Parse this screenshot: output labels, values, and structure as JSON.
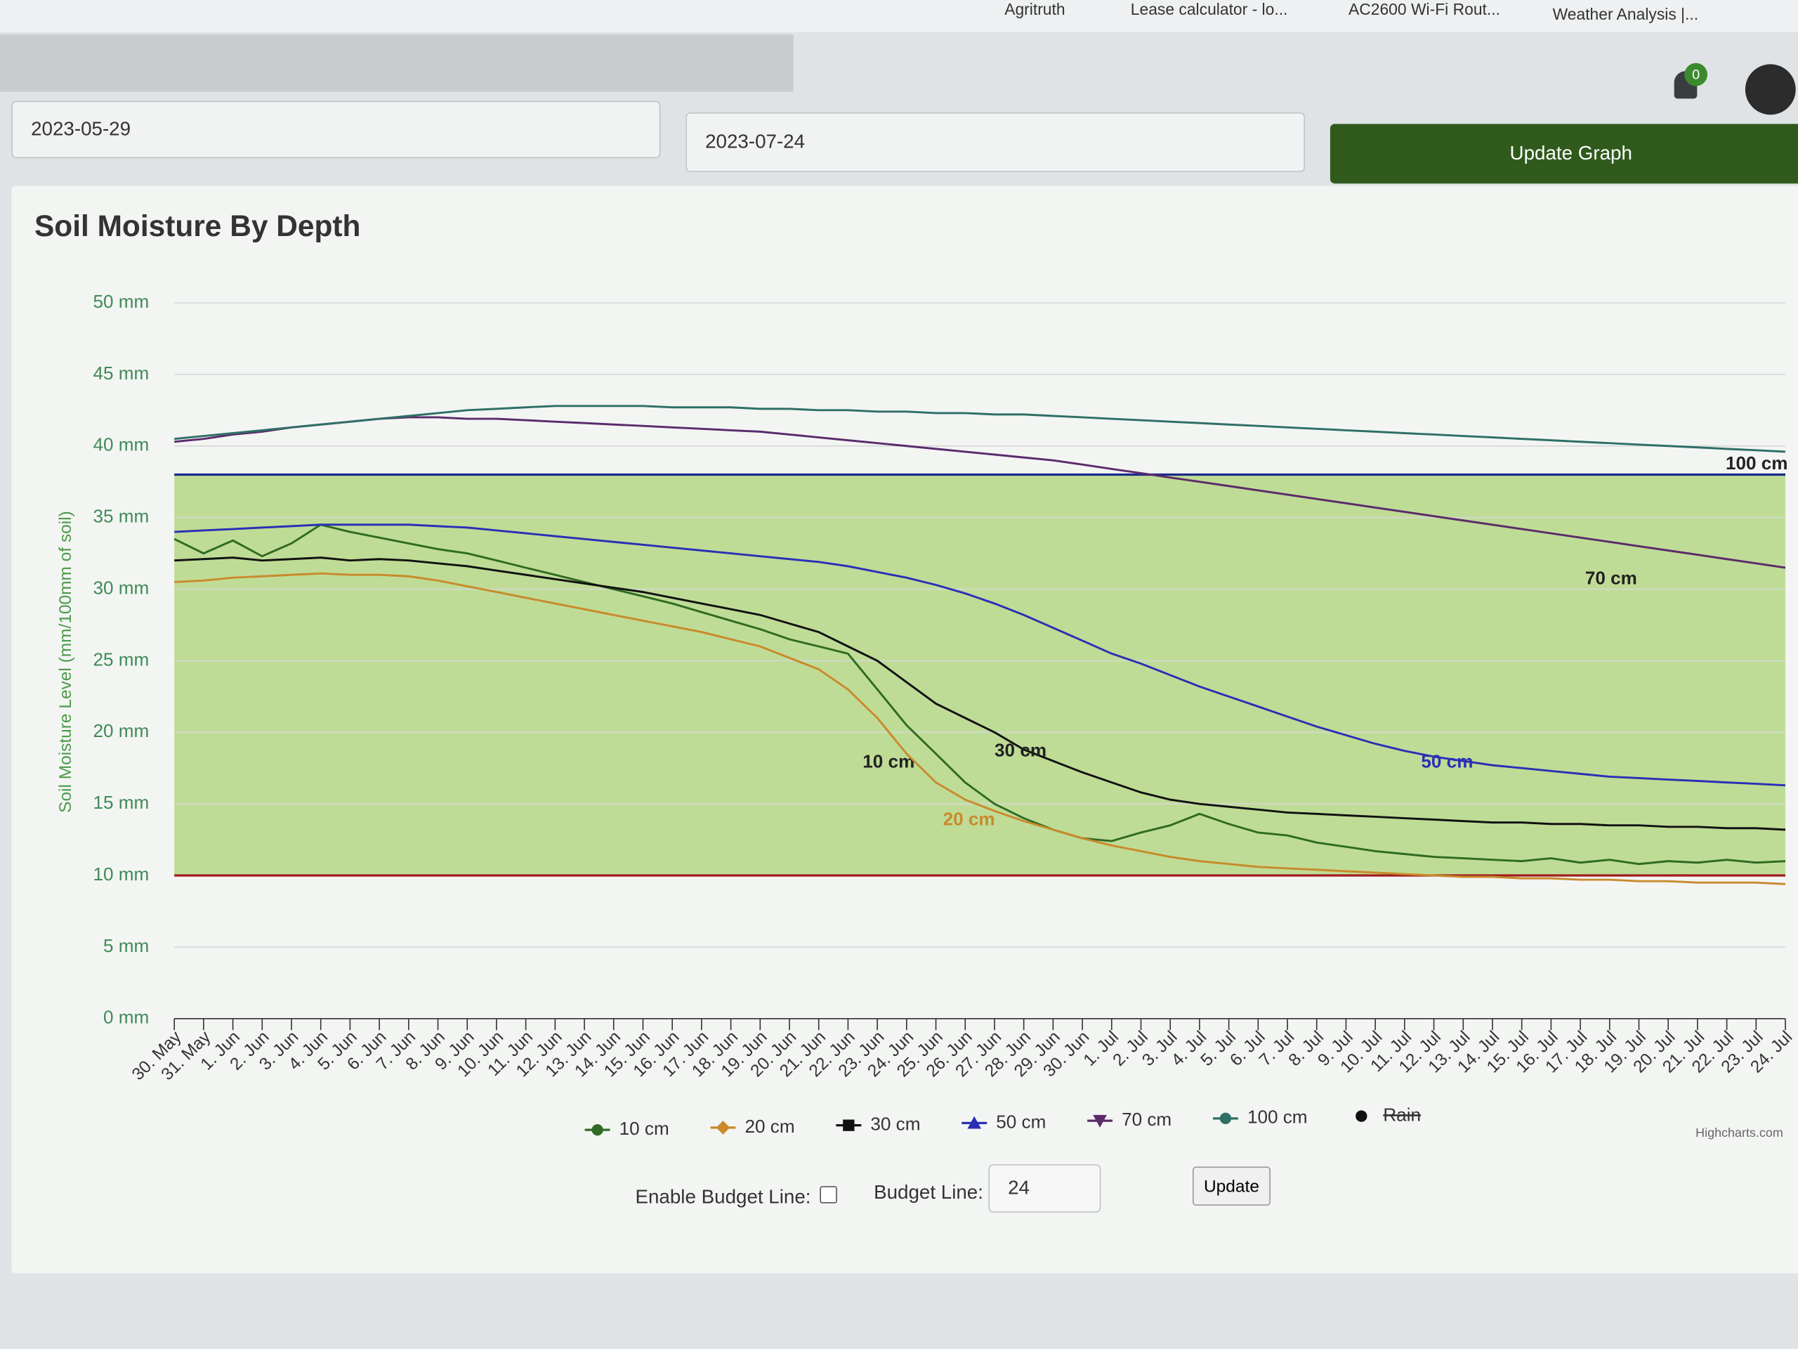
{
  "browser": {
    "bookmarks": [
      "Agritruth",
      "Lease calculator - lo...",
      "AC2600 Wi-Fi Rout...",
      "Weather Analysis |..."
    ]
  },
  "header": {
    "notifications": 0
  },
  "form": {
    "start_date": "2023-05-29",
    "end_date": "2023-07-24",
    "button": "Update Graph"
  },
  "chart_data": {
    "type": "line",
    "title": "Soil Moisture By Depth",
    "y_axis_label": "Soil Moisture Level (mm/100mm of soil)",
    "categories": [
      "30. May",
      "31. May",
      "1. Jun",
      "2. Jun",
      "3. Jun",
      "4. Jun",
      "5. Jun",
      "6. Jun",
      "7. Jun",
      "8. Jun",
      "9. Jun",
      "10. Jun",
      "11. Jun",
      "12. Jun",
      "13. Jun",
      "14. Jun",
      "15. Jun",
      "16. Jun",
      "17. Jun",
      "18. Jun",
      "19. Jun",
      "20. Jun",
      "21. Jun",
      "22. Jun",
      "23. Jun",
      "24. Jun",
      "25. Jun",
      "26. Jun",
      "27. Jun",
      "28. Jun",
      "29. Jun",
      "30. Jun",
      "1. Jul",
      "2. Jul",
      "3. Jul",
      "4. Jul",
      "5. Jul",
      "6. Jul",
      "7. Jul",
      "8. Jul",
      "9. Jul",
      "10. Jul",
      "11. Jul",
      "12. Jul",
      "13. Jul",
      "14. Jul",
      "15. Jul",
      "16. Jul",
      "17. Jul",
      "18. Jul",
      "19. Jul",
      "20. Jul",
      "21. Jul",
      "22. Jul",
      "23. Jul",
      "24. Jul"
    ],
    "ylim": [
      0,
      50
    ],
    "yticks": [
      {
        "value": 0,
        "label": "0 mm"
      },
      {
        "value": 5,
        "label": "5 mm"
      },
      {
        "value": 10,
        "label": "10 mm"
      },
      {
        "value": 15,
        "label": "15 mm"
      },
      {
        "value": 20,
        "label": "20 mm"
      },
      {
        "value": 25,
        "label": "25 mm"
      },
      {
        "value": 30,
        "label": "30 mm"
      },
      {
        "value": 35,
        "label": "35 mm"
      },
      {
        "value": 40,
        "label": "40 mm"
      },
      {
        "value": 45,
        "label": "45 mm"
      },
      {
        "value": 50,
        "label": "50 mm"
      }
    ],
    "grid": true,
    "plot_band": {
      "from": 10,
      "to": 38,
      "color": "#b9d98c"
    },
    "plot_lines": [
      {
        "value": 38,
        "color": "#1a2a8a"
      },
      {
        "value": 10,
        "color": "#a01c1c"
      }
    ],
    "series": [
      {
        "name": "10 cm",
        "color": "#2f6b22",
        "symbol": "circle",
        "values": [
          33.5,
          32.5,
          33.4,
          32.3,
          33.2,
          34.5,
          34.0,
          33.6,
          33.2,
          32.8,
          32.5,
          32.0,
          31.5,
          31.0,
          30.5,
          30.0,
          29.5,
          29.0,
          28.4,
          27.8,
          27.2,
          26.5,
          26.0,
          25.5,
          23.0,
          20.5,
          18.5,
          16.5,
          15.0,
          14.0,
          13.2,
          12.6,
          12.4,
          13.0,
          13.5,
          14.3,
          13.6,
          13.0,
          12.8,
          12.3,
          12.0,
          11.7,
          11.5,
          11.3,
          11.2,
          11.1,
          11.0,
          11.2,
          10.9,
          11.1,
          10.8,
          11.0,
          10.9,
          11.1,
          10.9,
          11.0
        ]
      },
      {
        "name": "20 cm",
        "color": "#c98a2c",
        "symbol": "diamond",
        "values": [
          30.5,
          30.6,
          30.8,
          30.9,
          31.0,
          31.1,
          31.0,
          31.0,
          30.9,
          30.6,
          30.2,
          29.8,
          29.4,
          29.0,
          28.6,
          28.2,
          27.8,
          27.4,
          27.0,
          26.5,
          26.0,
          25.2,
          24.4,
          23.0,
          21.0,
          18.5,
          16.5,
          15.3,
          14.5,
          13.8,
          13.2,
          12.6,
          12.1,
          11.7,
          11.3,
          11.0,
          10.8,
          10.6,
          10.5,
          10.4,
          10.3,
          10.2,
          10.1,
          10.0,
          9.9,
          9.9,
          9.8,
          9.8,
          9.7,
          9.7,
          9.6,
          9.6,
          9.5,
          9.5,
          9.5,
          9.4
        ]
      },
      {
        "name": "30 cm",
        "color": "#111111",
        "symbol": "square",
        "values": [
          32.0,
          32.1,
          32.2,
          32.0,
          32.1,
          32.2,
          32.0,
          32.1,
          32.0,
          31.8,
          31.6,
          31.3,
          31.0,
          30.7,
          30.4,
          30.1,
          29.8,
          29.4,
          29.0,
          28.6,
          28.2,
          27.6,
          27.0,
          26.0,
          25.0,
          23.5,
          22.0,
          21.0,
          20.0,
          18.8,
          18.0,
          17.2,
          16.5,
          15.8,
          15.3,
          15.0,
          14.8,
          14.6,
          14.4,
          14.3,
          14.2,
          14.1,
          14.0,
          13.9,
          13.8,
          13.7,
          13.7,
          13.6,
          13.6,
          13.5,
          13.5,
          13.4,
          13.4,
          13.3,
          13.3,
          13.2
        ]
      },
      {
        "name": "50 cm",
        "color": "#2a30b5",
        "symbol": "triangle",
        "values": [
          34.0,
          34.1,
          34.2,
          34.3,
          34.4,
          34.5,
          34.5,
          34.5,
          34.5,
          34.4,
          34.3,
          34.1,
          33.9,
          33.7,
          33.5,
          33.3,
          33.1,
          32.9,
          32.7,
          32.5,
          32.3,
          32.1,
          31.9,
          31.6,
          31.2,
          30.8,
          30.3,
          29.7,
          29.0,
          28.2,
          27.3,
          26.4,
          25.5,
          24.8,
          24.0,
          23.2,
          22.5,
          21.8,
          21.1,
          20.4,
          19.8,
          19.2,
          18.7,
          18.3,
          18.0,
          17.7,
          17.5,
          17.3,
          17.1,
          16.9,
          16.8,
          16.7,
          16.6,
          16.5,
          16.4,
          16.3
        ]
      },
      {
        "name": "70 cm",
        "color": "#5b2b6b",
        "symbol": "triangle-down",
        "values": [
          40.3,
          40.5,
          40.8,
          41.0,
          41.3,
          41.5,
          41.7,
          41.9,
          42.0,
          42.0,
          41.9,
          41.9,
          41.8,
          41.7,
          41.6,
          41.5,
          41.4,
          41.3,
          41.2,
          41.1,
          41.0,
          40.8,
          40.6,
          40.4,
          40.2,
          40.0,
          39.8,
          39.6,
          39.4,
          39.2,
          39.0,
          38.7,
          38.4,
          38.1,
          37.8,
          37.5,
          37.2,
          36.9,
          36.6,
          36.3,
          36.0,
          35.7,
          35.4,
          35.1,
          34.8,
          34.5,
          34.2,
          33.9,
          33.6,
          33.3,
          33.0,
          32.7,
          32.4,
          32.1,
          31.8,
          31.5
        ]
      },
      {
        "name": "100 cm",
        "color": "#2f6f66",
        "symbol": "circle",
        "values": [
          40.5,
          40.7,
          40.9,
          41.1,
          41.3,
          41.5,
          41.7,
          41.9,
          42.1,
          42.3,
          42.5,
          42.6,
          42.7,
          42.8,
          42.8,
          42.8,
          42.8,
          42.7,
          42.7,
          42.7,
          42.6,
          42.6,
          42.5,
          42.5,
          42.4,
          42.4,
          42.3,
          42.3,
          42.2,
          42.2,
          42.1,
          42.0,
          41.9,
          41.8,
          41.7,
          41.6,
          41.5,
          41.4,
          41.3,
          41.2,
          41.1,
          41.0,
          40.9,
          40.8,
          40.7,
          40.6,
          40.5,
          40.4,
          40.3,
          40.2,
          40.1,
          40.0,
          39.9,
          39.8,
          39.7,
          39.6
        ]
      },
      {
        "name": "Rain",
        "color": "#111111",
        "symbol": "circle",
        "visible": false
      }
    ],
    "credit": "Highcharts.com"
  },
  "budget": {
    "enable_label": "Enable Budget Line:",
    "line_label": "Budget Line:",
    "value": 24,
    "button": "Update"
  }
}
